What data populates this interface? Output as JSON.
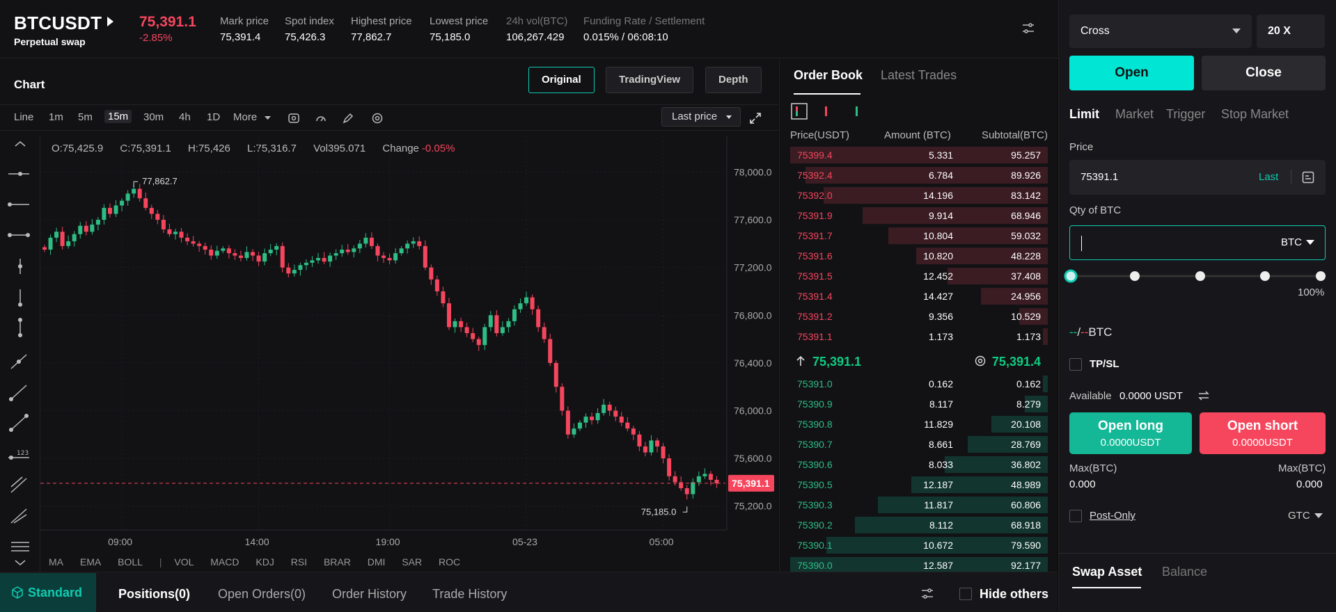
{
  "header": {
    "symbol": "BTCUSDT",
    "subtitle": "Perpetual swap",
    "last_price": "75,391.1",
    "change": "-2.85%",
    "stats": [
      {
        "label": "Mark price",
        "value": "75,391.4"
      },
      {
        "label": "Spot index",
        "value": "75,426.3"
      },
      {
        "label": "Highest price",
        "value": "77,862.7"
      },
      {
        "label": "Lowest price",
        "value": "75,185.0"
      },
      {
        "label": "24h vol(BTC)",
        "value": "106,267.429"
      },
      {
        "label": "Funding Rate / Settlement",
        "value": "0.015% / 06:08:10"
      }
    ]
  },
  "chart": {
    "title": "Chart",
    "view_buttons": [
      "Original",
      "TradingView",
      "Depth"
    ],
    "timeframes": [
      "Line",
      "1m",
      "5m",
      "15m",
      "30m",
      "4h",
      "1D",
      "More"
    ],
    "active_timeframe": "15m",
    "price_source": "Last price",
    "ohlc": {
      "o": "O:75,425.9",
      "c": "C:75,391.1",
      "h": "H:75,426",
      "l": "L:75,316.7",
      "vol": "Vol395.071",
      "change_label": "Change",
      "change_value": "-0.05%"
    },
    "indicators": [
      "MA",
      "EMA",
      "BOLL",
      "VOL",
      "MACD",
      "KDJ",
      "RSI",
      "BRAR",
      "DMI",
      "SAR",
      "ROC"
    ],
    "high_marker": "77,862.7",
    "low_marker": "75,185.0",
    "current_label": "75,391.1"
  },
  "chart_data": {
    "type": "candlestick",
    "y_ticks": [
      "78,000.0",
      "77,600.0",
      "77,200.0",
      "76,800.0",
      "76,400.0",
      "76,000.0",
      "75,600.0",
      "75,200.0"
    ],
    "y_tick_values": [
      78000,
      77600,
      77200,
      76800,
      76400,
      76000,
      75600,
      75200
    ],
    "x_ticks": [
      "09:00",
      "14:00",
      "19:00",
      "05-23",
      "05:00"
    ],
    "ylim": [
      75000,
      78300
    ],
    "close_path": [
      77350,
      77450,
      77500,
      77380,
      77420,
      77480,
      77550,
      77500,
      77560,
      77600,
      77700,
      77650,
      77720,
      77760,
      77820,
      77860,
      77780,
      77700,
      77650,
      77600,
      77520,
      77480,
      77500,
      77450,
      77420,
      77400,
      77380,
      77350,
      77300,
      77340,
      77360,
      77320,
      77300,
      77280,
      77330,
      77300,
      77250,
      77320,
      77350,
      77380,
      77200,
      77150,
      77180,
      77220,
      77240,
      77260,
      77280,
      77250,
      77300,
      77320,
      77350,
      77330,
      77360,
      77400,
      77450,
      77380,
      77300,
      77280,
      77260,
      77320,
      77360,
      77400,
      77420,
      77380,
      77200,
      77100,
      77000,
      76900,
      76700,
      76750,
      76700,
      76650,
      76600,
      76550,
      76700,
      76800,
      76650,
      76700,
      76750,
      76850,
      76900,
      76950,
      76850,
      76700,
      76600,
      76400,
      76200,
      76000,
      75800,
      75850,
      75900,
      75950,
      75920,
      75980,
      76050,
      76000,
      75950,
      75900,
      75850,
      75800,
      75700,
      75650,
      75750,
      75700,
      75600,
      75450,
      75400,
      75350,
      75300,
      75400,
      75450,
      75470,
      75420,
      75391
    ],
    "current": 75391.1
  },
  "orderbook": {
    "tabs": [
      "Order Book",
      "Latest Trades"
    ],
    "columns": [
      "Price(USDT)",
      "Amount (BTC)",
      "Subtotal(BTC)"
    ],
    "asks": [
      {
        "p": "75399.4",
        "a": "5.331",
        "s": "95.257",
        "d": 1.0
      },
      {
        "p": "75392.4",
        "a": "6.784",
        "s": "89.926",
        "d": 0.94
      },
      {
        "p": "75392.0",
        "a": "14.196",
        "s": "83.142",
        "d": 0.87
      },
      {
        "p": "75391.9",
        "a": "9.914",
        "s": "68.946",
        "d": 0.72
      },
      {
        "p": "75391.7",
        "a": "10.804",
        "s": "59.032",
        "d": 0.62
      },
      {
        "p": "75391.6",
        "a": "10.820",
        "s": "48.228",
        "d": 0.51
      },
      {
        "p": "75391.5",
        "a": "12.452",
        "s": "37.408",
        "d": 0.39
      },
      {
        "p": "75391.4",
        "a": "14.427",
        "s": "24.956",
        "d": 0.26
      },
      {
        "p": "75391.2",
        "a": "9.356",
        "s": "10.529",
        "d": 0.11
      },
      {
        "p": "75391.1",
        "a": "1.173",
        "s": "1.173",
        "d": 0.02
      }
    ],
    "last": "75,391.1",
    "mark": "75,391.4",
    "bids": [
      {
        "p": "75391.0",
        "a": "0.162",
        "s": "0.162",
        "d": 0.02
      },
      {
        "p": "75390.9",
        "a": "8.117",
        "s": "8.279",
        "d": 0.09
      },
      {
        "p": "75390.8",
        "a": "11.829",
        "s": "20.108",
        "d": 0.22
      },
      {
        "p": "75390.7",
        "a": "8.661",
        "s": "28.769",
        "d": 0.31
      },
      {
        "p": "75390.6",
        "a": "8.033",
        "s": "36.802",
        "d": 0.4
      },
      {
        "p": "75390.5",
        "a": "12.187",
        "s": "48.989",
        "d": 0.53
      },
      {
        "p": "75390.3",
        "a": "11.817",
        "s": "60.806",
        "d": 0.66
      },
      {
        "p": "75390.2",
        "a": "8.112",
        "s": "68.918",
        "d": 0.75
      },
      {
        "p": "75390.1",
        "a": "10.672",
        "s": "79.590",
        "d": 0.86
      },
      {
        "p": "75390.0",
        "a": "12.587",
        "s": "92.177",
        "d": 1.0
      }
    ]
  },
  "trade": {
    "margin_mode": "Cross",
    "leverage": "20 X",
    "open_label": "Open",
    "close_label": "Close",
    "order_types": [
      "Limit",
      "Market",
      "Trigger",
      "Stop Market"
    ],
    "price_label": "Price",
    "price_value": "75391.1",
    "price_last": "Last",
    "qty_label": "Qty of BTC",
    "qty_unit": "BTC",
    "slider_value": "100%",
    "size_dash_a": "--",
    "size_sep": "/",
    "size_dash_b": "--",
    "size_unit": "BTC",
    "tpsl": "TP/SL",
    "available_label": "Available",
    "available_value": "0.0000 USDT",
    "open_long": "Open long",
    "open_long_sub": "0.0000USDT",
    "open_short": "Open short",
    "open_short_sub": "0.0000USDT",
    "max_label": "Max(BTC)",
    "max_long": "0.000",
    "max_short": "0.000",
    "post_only": "Post-Only",
    "tif": "GTC",
    "asset_tabs": [
      "Swap Asset",
      "Balance"
    ]
  },
  "bottom": {
    "standard": "Standard",
    "tabs": [
      "Positions(0)",
      "Open Orders(0)",
      "Order History",
      "Trade History"
    ],
    "hide_others": "Hide others"
  },
  "colors": {
    "accent": "#0ecbb0",
    "up": "#2ebd85",
    "down": "#f6465d"
  }
}
